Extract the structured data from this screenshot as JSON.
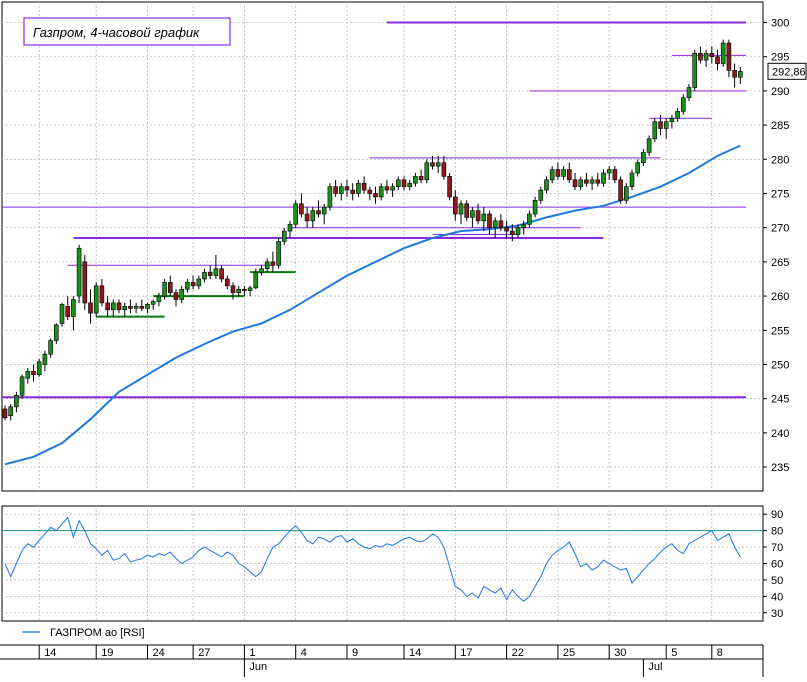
{
  "chart_data": [
    {
      "type": "candlestick",
      "title": "Газпром, 4-часовой график",
      "ylim": [
        231.5,
        303
      ],
      "yticks": [
        235,
        240,
        245,
        250,
        255,
        260,
        265,
        270,
        275,
        280,
        285,
        290,
        295,
        300
      ],
      "last_price": "292,86",
      "grid": true,
      "colors": {
        "up": "#1a8f1a",
        "down": "#8b1a1a",
        "ma": "#1e78e0",
        "level": "#8a2be2",
        "support": "#0a7a0a",
        "grid": "#b8b8b8"
      },
      "candles": [
        [
          0,
          243.5,
          244.0,
          241.8,
          242.2
        ],
        [
          1,
          242.5,
          244.2,
          241.8,
          243.8
        ],
        [
          2,
          243.8,
          246.0,
          243.0,
          245.5
        ],
        [
          3,
          245.5,
          248.5,
          245.0,
          248.2
        ],
        [
          4,
          248.0,
          249.5,
          247.2,
          249.0
        ],
        [
          5,
          249.0,
          250.0,
          247.5,
          248.5
        ],
        [
          6,
          248.5,
          250.8,
          248.2,
          250.4
        ],
        [
          7,
          250.0,
          252.0,
          249.0,
          251.5
        ],
        [
          8,
          251.5,
          253.8,
          251.0,
          253.5
        ],
        [
          9,
          253.5,
          256.0,
          253.0,
          255.8
        ],
        [
          10,
          256.0,
          259.0,
          255.5,
          258.8
        ],
        [
          11,
          258.5,
          260.0,
          256.5,
          257.0
        ],
        [
          12,
          257.0,
          260.0,
          255.0,
          259.5
        ],
        [
          13,
          260.0,
          267.5,
          259.0,
          267.0
        ],
        [
          14,
          265.0,
          266.0,
          258.0,
          259.0
        ],
        [
          15,
          259.0,
          261.0,
          256.0,
          257.5
        ],
        [
          16,
          257.5,
          262.0,
          257.0,
          261.5
        ],
        [
          17,
          261.5,
          262.5,
          258.5,
          259.0
        ],
        [
          18,
          259.0,
          260.0,
          257.0,
          258.0
        ],
        [
          19,
          258.0,
          259.5,
          257.0,
          259.0
        ],
        [
          20,
          259.0,
          259.5,
          257.5,
          258.0
        ],
        [
          21,
          258.0,
          259.0,
          257.0,
          258.5
        ],
        [
          22,
          258.5,
          259.5,
          257.5,
          258.2
        ],
        [
          23,
          258.2,
          259.0,
          257.5,
          258.5
        ],
        [
          24,
          258.5,
          259.5,
          257.8,
          258.2
        ],
        [
          25,
          258.2,
          259.0,
          257.5,
          258.8
        ],
        [
          26,
          258.8,
          259.5,
          258.0,
          259.2
        ],
        [
          27,
          259.2,
          260.5,
          258.5,
          260.0
        ],
        [
          28,
          260.0,
          262.5,
          259.5,
          262.0
        ],
        [
          29,
          262.0,
          263.0,
          260.0,
          260.5
        ],
        [
          30,
          260.5,
          261.0,
          258.5,
          259.5
        ],
        [
          31,
          259.5,
          261.5,
          259.0,
          261.0
        ],
        [
          32,
          261.0,
          262.5,
          260.5,
          262.0
        ],
        [
          33,
          262.0,
          263.0,
          261.0,
          261.5
        ],
        [
          34,
          261.5,
          263.0,
          261.0,
          262.5
        ],
        [
          35,
          262.5,
          264.0,
          262.0,
          263.5
        ],
        [
          36,
          263.5,
          264.5,
          262.5,
          263.0
        ],
        [
          37,
          263.0,
          266.0,
          262.5,
          264.0
        ],
        [
          38,
          264.0,
          264.5,
          262.0,
          262.5
        ],
        [
          39,
          262.5,
          263.0,
          261.0,
          261.5
        ],
        [
          40,
          261.5,
          262.0,
          259.5,
          260.5
        ],
        [
          41,
          260.5,
          261.5,
          260.0,
          261.0
        ],
        [
          42,
          261.0,
          261.5,
          260.0,
          260.8
        ],
        [
          43,
          260.8,
          261.5,
          260.0,
          261.2
        ],
        [
          44,
          261.2,
          264.0,
          261.0,
          263.5
        ],
        [
          45,
          263.5,
          264.5,
          263.0,
          264.0
        ],
        [
          46,
          264.0,
          265.5,
          263.5,
          265.0
        ],
        [
          47,
          265.0,
          266.5,
          263.5,
          264.5
        ],
        [
          48,
          264.5,
          268.5,
          264.0,
          268.0
        ],
        [
          49,
          268.0,
          270.0,
          267.5,
          269.5
        ],
        [
          50,
          269.5,
          271.0,
          268.5,
          270.5
        ],
        [
          51,
          270.5,
          274.0,
          270.0,
          273.5
        ],
        [
          52,
          273.5,
          275.0,
          271.5,
          272.0
        ],
        [
          53,
          272.0,
          273.0,
          270.0,
          271.0
        ],
        [
          54,
          271.0,
          273.0,
          270.0,
          272.5
        ],
        [
          55,
          272.5,
          274.0,
          271.5,
          272.0
        ],
        [
          56,
          272.0,
          273.5,
          270.5,
          273.0
        ],
        [
          57,
          273.0,
          276.5,
          272.5,
          276.0
        ],
        [
          58,
          276.0,
          277.0,
          274.5,
          275.0
        ],
        [
          59,
          275.0,
          276.5,
          274.0,
          276.0
        ],
        [
          60,
          276.0,
          277.0,
          274.5,
          275.5
        ],
        [
          61,
          275.5,
          276.5,
          274.0,
          275.0
        ],
        [
          62,
          275.0,
          277.0,
          274.5,
          276.5
        ],
        [
          63,
          276.5,
          277.5,
          275.0,
          275.5
        ],
        [
          64,
          275.5,
          276.0,
          274.0,
          275.0
        ],
        [
          65,
          275.0,
          276.0,
          273.5,
          274.5
        ],
        [
          66,
          274.5,
          276.5,
          274.0,
          276.0
        ],
        [
          67,
          276.0,
          277.0,
          275.0,
          275.5
        ],
        [
          68,
          275.5,
          276.5,
          274.5,
          276.0
        ],
        [
          69,
          276.0,
          277.5,
          275.5,
          277.0
        ],
        [
          70,
          277.0,
          277.5,
          275.5,
          276.0
        ],
        [
          71,
          276.0,
          277.0,
          275.5,
          276.5
        ],
        [
          72,
          276.5,
          278.0,
          276.0,
          277.5
        ],
        [
          73,
          277.5,
          278.5,
          276.5,
          277.0
        ],
        [
          74,
          277.0,
          280.0,
          276.5,
          279.5
        ],
        [
          75,
          279.5,
          280.5,
          278.5,
          279.0
        ],
        [
          76,
          279.0,
          280.5,
          278.0,
          279.5
        ],
        [
          77,
          279.5,
          280.5,
          277.0,
          277.5
        ],
        [
          78,
          277.5,
          278.0,
          274.0,
          274.5
        ],
        [
          79,
          274.5,
          275.5,
          271.0,
          272.0
        ],
        [
          80,
          272.0,
          274.0,
          270.5,
          273.5
        ],
        [
          81,
          273.5,
          274.0,
          271.0,
          271.5
        ],
        [
          82,
          271.5,
          273.0,
          270.0,
          272.5
        ],
        [
          83,
          272.5,
          273.5,
          270.5,
          271.0
        ],
        [
          84,
          271.0,
          273.0,
          269.5,
          272.0
        ],
        [
          85,
          272.0,
          272.5,
          269.0,
          270.0
        ],
        [
          86,
          270.0,
          271.5,
          268.5,
          271.0
        ],
        [
          87,
          271.0,
          272.0,
          269.5,
          270.0
        ],
        [
          88,
          270.0,
          271.0,
          268.5,
          269.5
        ],
        [
          89,
          269.5,
          270.5,
          268.0,
          269.0
        ],
        [
          90,
          269.0,
          270.5,
          268.5,
          270.0
        ],
        [
          91,
          270.0,
          271.0,
          269.0,
          270.5
        ],
        [
          92,
          270.5,
          272.5,
          270.0,
          272.0
        ],
        [
          93,
          272.0,
          274.5,
          271.5,
          274.0
        ],
        [
          94,
          274.0,
          276.0,
          273.5,
          275.5
        ],
        [
          95,
          275.5,
          277.5,
          275.0,
          277.0
        ],
        [
          96,
          277.0,
          279.0,
          276.5,
          278.5
        ],
        [
          97,
          278.5,
          279.5,
          277.0,
          277.5
        ],
        [
          98,
          277.5,
          279.0,
          277.0,
          278.5
        ],
        [
          99,
          278.5,
          279.5,
          276.5,
          277.0
        ],
        [
          100,
          277.0,
          278.0,
          275.5,
          276.0
        ],
        [
          101,
          276.0,
          277.5,
          275.5,
          277.0
        ],
        [
          102,
          277.0,
          278.0,
          276.0,
          276.5
        ],
        [
          103,
          276.5,
          277.5,
          275.5,
          277.0
        ],
        [
          104,
          277.0,
          278.0,
          276.0,
          276.5
        ],
        [
          105,
          276.5,
          278.5,
          276.0,
          278.0
        ],
        [
          106,
          278.0,
          279.0,
          277.0,
          278.5
        ],
        [
          107,
          278.5,
          279.0,
          276.5,
          277.0
        ],
        [
          108,
          277.0,
          277.5,
          273.5,
          274.0
        ],
        [
          109,
          274.0,
          276.5,
          273.5,
          276.0
        ],
        [
          110,
          276.0,
          278.5,
          275.5,
          278.0
        ],
        [
          111,
          278.0,
          280.0,
          277.5,
          279.5
        ],
        [
          112,
          279.5,
          281.5,
          279.0,
          281.0
        ],
        [
          113,
          281.0,
          283.5,
          280.5,
          283.0
        ],
        [
          114,
          283.0,
          286.0,
          282.5,
          285.5
        ],
        [
          115,
          285.5,
          286.5,
          283.5,
          284.5
        ],
        [
          116,
          284.5,
          286.0,
          283.0,
          285.5
        ],
        [
          117,
          285.5,
          286.5,
          284.5,
          286.0
        ],
        [
          118,
          286.0,
          287.5,
          285.5,
          287.0
        ],
        [
          119,
          287.0,
          289.5,
          286.5,
          289.0
        ],
        [
          120,
          289.0,
          291.0,
          288.5,
          290.5
        ],
        [
          121,
          290.5,
          296.0,
          290.0,
          295.5
        ],
        [
          122,
          295.5,
          296.5,
          294.0,
          294.5
        ],
        [
          123,
          294.5,
          296.0,
          293.5,
          295.5
        ],
        [
          124,
          295.5,
          296.5,
          294.0,
          295.0
        ],
        [
          125,
          295.0,
          296.0,
          293.0,
          294.0
        ],
        [
          126,
          294.0,
          297.5,
          293.5,
          297.0
        ],
        [
          127,
          297.0,
          297.5,
          292.0,
          293.0
        ],
        [
          128,
          293.0,
          294.0,
          290.5,
          292.0
        ],
        [
          129,
          292.0,
          293.5,
          291.0,
          292.86
        ]
      ],
      "moving_average": [
        [
          0,
          235.4
        ],
        [
          5,
          236.5
        ],
        [
          10,
          238.5
        ],
        [
          15,
          242.0
        ],
        [
          20,
          246.0
        ],
        [
          25,
          248.5
        ],
        [
          30,
          251.0
        ],
        [
          35,
          253.0
        ],
        [
          40,
          254.8
        ],
        [
          45,
          256.0
        ],
        [
          50,
          258.0
        ],
        [
          55,
          260.5
        ],
        [
          60,
          263.0
        ],
        [
          65,
          265.0
        ],
        [
          70,
          267.0
        ],
        [
          75,
          268.5
        ],
        [
          80,
          269.5
        ],
        [
          85,
          269.8
        ],
        [
          90,
          270.3
        ],
        [
          95,
          271.5
        ],
        [
          100,
          272.5
        ],
        [
          105,
          273.2
        ],
        [
          110,
          274.5
        ],
        [
          115,
          276.0
        ],
        [
          120,
          278.0
        ],
        [
          125,
          280.5
        ],
        [
          129,
          282.0
        ]
      ],
      "levels": [
        {
          "value": 300.0,
          "x0": 67,
          "x1": 130
        },
        {
          "value": 295.2,
          "x0": 117,
          "x1": 130
        },
        {
          "value": 290.0,
          "x0": 92,
          "x1": 130
        },
        {
          "value": 286.0,
          "x0": 113,
          "x1": 124
        },
        {
          "value": 280.2,
          "x0": 64,
          "x1": 115
        },
        {
          "value": 273.0,
          "x0": -5,
          "x1": 130
        },
        {
          "value": 270.0,
          "x0": 50,
          "x1": 101
        },
        {
          "value": 269.0,
          "x0": 75,
          "x1": 90
        },
        {
          "value": 268.5,
          "x0": 12,
          "x1": 105
        },
        {
          "value": 264.5,
          "x0": 11,
          "x1": 47
        },
        {
          "value": 245.2,
          "x0": -5,
          "x1": 130
        }
      ],
      "supports": [
        {
          "value": 263.5,
          "x0": 43,
          "x1": 51
        },
        {
          "value": 260.0,
          "x0": 26,
          "x1": 42
        },
        {
          "value": 257.0,
          "x0": 16,
          "x1": 28
        }
      ]
    },
    {
      "type": "line",
      "legend": "ГАЗПРОМ ао [RSI]",
      "ylim": [
        25,
        95
      ],
      "yticks": [
        30,
        40,
        50,
        60,
        70,
        80,
        90
      ],
      "reference_line": 80,
      "values": [
        60,
        52,
        60,
        68,
        72,
        70,
        74,
        78,
        82,
        80,
        84,
        88,
        76,
        86,
        80,
        72,
        69,
        65,
        68,
        62,
        63,
        66,
        61,
        62,
        63,
        65,
        64,
        66,
        65,
        67,
        63,
        60,
        62,
        64,
        68,
        70,
        68,
        66,
        64,
        67,
        65,
        60,
        58,
        55,
        52,
        55,
        63,
        70,
        72,
        76,
        80,
        83,
        79,
        74,
        72,
        76,
        75,
        73,
        76,
        77,
        73,
        75,
        72,
        70,
        69,
        71,
        70,
        72,
        71,
        73,
        75,
        76,
        74,
        73,
        75,
        78,
        76,
        70,
        58,
        46,
        44,
        40,
        42,
        39,
        46,
        44,
        42,
        45,
        38,
        44,
        40,
        37,
        40,
        46,
        52,
        60,
        65,
        68,
        70,
        73,
        66,
        58,
        60,
        56,
        58,
        62,
        60,
        58,
        56,
        57,
        48,
        52,
        56,
        60,
        63,
        67,
        70,
        72,
        68,
        66,
        72,
        74,
        76,
        78,
        80,
        74,
        76,
        78,
        70,
        64
      ]
    }
  ],
  "x_axis": {
    "ticks": [
      {
        "label": "14",
        "index": 6
      },
      {
        "label": "19",
        "index": 16
      },
      {
        "label": "24",
        "index": 25
      },
      {
        "label": "27",
        "index": 33
      },
      {
        "label": "1",
        "index": 42
      },
      {
        "label": "4",
        "index": 51
      },
      {
        "label": "9",
        "index": 60
      },
      {
        "label": "14",
        "index": 70
      },
      {
        "label": "17",
        "index": 79
      },
      {
        "label": "22",
        "index": 88
      },
      {
        "label": "25",
        "index": 97
      },
      {
        "label": "30",
        "index": 106
      },
      {
        "label": "5",
        "index": 116
      },
      {
        "label": "8",
        "index": 124
      }
    ],
    "months": [
      {
        "label": "Jun",
        "index": 42
      },
      {
        "label": "Jul",
        "index": 112
      }
    ]
  }
}
